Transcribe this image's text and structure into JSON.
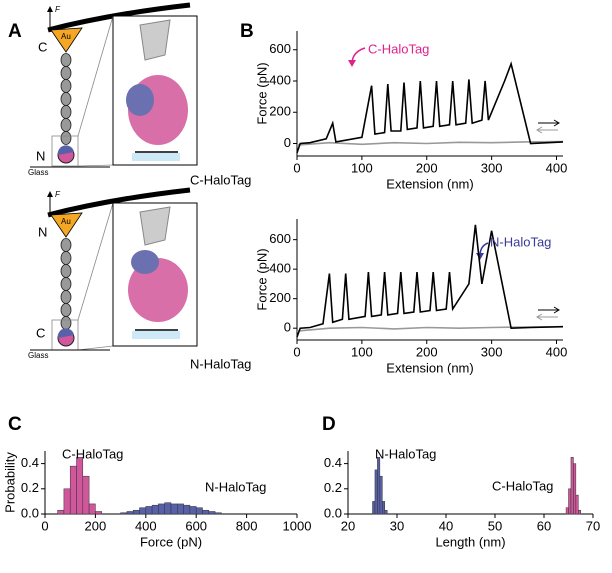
{
  "panels": [
    "A",
    "B",
    "C",
    "D"
  ],
  "diagram": {
    "top": {
      "force": "F",
      "tip": "Au",
      "upper_end": "C",
      "lower_end": "N",
      "surface": "Glass",
      "label": "C-HaloTag"
    },
    "bottom": {
      "force": "F",
      "tip": "Au",
      "upper_end": "N",
      "lower_end": "C",
      "surface": "Glass",
      "label": "N-HaloTag"
    }
  },
  "chart_data": [
    {
      "type": "line",
      "xlabel": "Extension (nm)",
      "ylabel": "Force (pN)",
      "annotations": [
        "C-HaloTag"
      ],
      "xlim": [
        0,
        410
      ],
      "xticks": [
        0,
        100,
        200,
        300,
        400
      ],
      "ylim": [
        -80,
        720
      ],
      "yticks": [
        0,
        200,
        400,
        600
      ],
      "series": [
        {
          "color": "#999999",
          "x": [
            0,
            50,
            100,
            150,
            200,
            250,
            300,
            350,
            410
          ],
          "values": [
            -10,
            5,
            -5,
            5,
            0,
            8,
            5,
            10,
            12
          ]
        },
        {
          "color": "#000000",
          "x": [
            0,
            5,
            20,
            45,
            55,
            60,
            100,
            115,
            120,
            135,
            140,
            145,
            160,
            165,
            170,
            185,
            190,
            195,
            210,
            215,
            220,
            235,
            240,
            245,
            260,
            265,
            270,
            285,
            290,
            295,
            320,
            330,
            360,
            410
          ],
          "values": [
            -60,
            0,
            5,
            30,
            130,
            10,
            40,
            370,
            60,
            70,
            380,
            80,
            80,
            390,
            90,
            100,
            400,
            100,
            110,
            400,
            110,
            120,
            400,
            120,
            130,
            410,
            130,
            150,
            400,
            150,
            400,
            510,
            0,
            10
          ]
        }
      ]
    },
    {
      "type": "line",
      "xlabel": "Extension (nm)",
      "ylabel": "Force (pN)",
      "annotations": [
        "N-HaloTag"
      ],
      "xlim": [
        0,
        410
      ],
      "xticks": [
        0,
        100,
        200,
        300,
        400
      ],
      "ylim": [
        -80,
        740
      ],
      "yticks": [
        0,
        200,
        400,
        600
      ],
      "series": [
        {
          "color": "#999999",
          "x": [
            0,
            50,
            100,
            150,
            200,
            250,
            300,
            350,
            410
          ],
          "values": [
            -20,
            0,
            5,
            -5,
            5,
            0,
            5,
            8,
            10
          ]
        },
        {
          "color": "#000000",
          "x": [
            0,
            5,
            20,
            40,
            50,
            55,
            70,
            75,
            80,
            105,
            110,
            115,
            130,
            135,
            140,
            155,
            160,
            165,
            180,
            185,
            190,
            205,
            210,
            215,
            230,
            235,
            240,
            265,
            275,
            285,
            300,
            330,
            360,
            410
          ],
          "values": [
            -60,
            0,
            5,
            30,
            370,
            40,
            60,
            370,
            60,
            80,
            380,
            80,
            90,
            380,
            90,
            100,
            380,
            100,
            110,
            380,
            110,
            120,
            380,
            120,
            130,
            380,
            130,
            300,
            700,
            300,
            660,
            0,
            5,
            10
          ]
        }
      ]
    },
    {
      "type": "histogram",
      "xlabel": "Force (pN)",
      "ylabel": "Probability",
      "annotations": [
        "C-HaloTag",
        "N-HaloTag"
      ],
      "xlim": [
        0,
        1000
      ],
      "xticks": [
        0,
        200,
        400,
        600,
        800,
        1000
      ],
      "ylim": [
        0,
        0.5
      ],
      "yticks": [
        {
          "value": 0,
          "label": "0.0"
        },
        0.2,
        0.4
      ],
      "series": [
        {
          "color": "#d0579b",
          "bins": [
            50,
            75,
            100,
            125,
            150,
            175,
            200,
            225
          ],
          "values": [
            0.03,
            0.2,
            0.38,
            0.45,
            0.3,
            0.08,
            0.02
          ]
        },
        {
          "color": "#5860a8",
          "bins": [
            300,
            325,
            350,
            375,
            400,
            425,
            450,
            475,
            500,
            525,
            550,
            575,
            600,
            625,
            650,
            675,
            700
          ],
          "values": [
            0.01,
            0.02,
            0.03,
            0.05,
            0.06,
            0.07,
            0.08,
            0.09,
            0.08,
            0.08,
            0.07,
            0.06,
            0.05,
            0.03,
            0.02,
            0.01
          ]
        }
      ]
    },
    {
      "type": "histogram",
      "xlabel": "Length (nm)",
      "annotations": [
        "N-HaloTag",
        "C-HaloTag"
      ],
      "xlim": [
        20,
        70
      ],
      "xticks": [
        20,
        30,
        40,
        50,
        60,
        70
      ],
      "ylim": [
        0,
        0.5
      ],
      "yticks": [
        {
          "value": 0,
          "label": "0.0"
        },
        0.2,
        0.4
      ],
      "series": [
        {
          "color": "#5860a8",
          "bins": [
            25,
            25.5,
            26,
            26.5,
            27,
            27.5,
            28
          ],
          "values": [
            0.1,
            0.35,
            0.45,
            0.3,
            0.1,
            0.03
          ]
        },
        {
          "color": "#d0579b",
          "bins": [
            64.5,
            65,
            65.5,
            66,
            66.5,
            67,
            67.5
          ],
          "values": [
            0.05,
            0.2,
            0.45,
            0.4,
            0.15,
            0.03
          ]
        }
      ]
    }
  ]
}
